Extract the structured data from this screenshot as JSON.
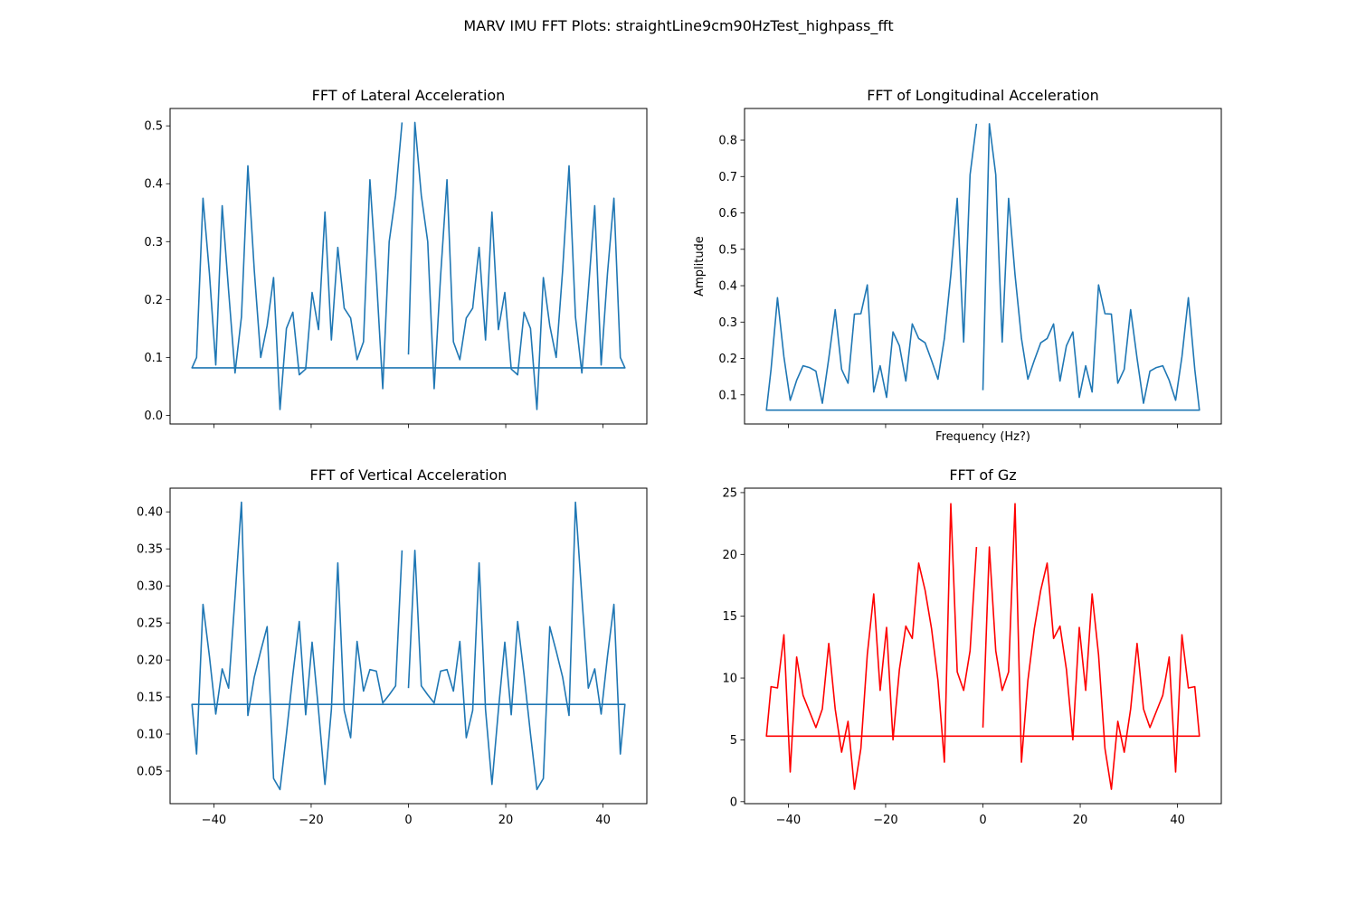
{
  "figure": {
    "title": "MARV IMU FFT Plots: straightLine9cm90HzTest_highpass_fft"
  },
  "chart_data": [
    {
      "type": "line",
      "title": "FFT of Lateral Acceleration",
      "xlabel": "",
      "ylabel": "",
      "color": "#1f77b4",
      "xlim": [
        -49,
        49
      ],
      "ylim": [
        -0.015,
        0.53
      ],
      "xticks": [
        -40,
        -20,
        0,
        20,
        40
      ],
      "xtick_labels": [],
      "yticks": [
        0.0,
        0.1,
        0.2,
        0.3,
        0.4,
        0.5
      ],
      "ytick_labels": [
        "0.0",
        "0.1",
        "0.2",
        "0.3",
        "0.4",
        "0.5"
      ],
      "grid": false,
      "series": [
        {
          "x": [
            0,
            1.32,
            2.64,
            3.96,
            5.28,
            6.6,
            7.92,
            9.24,
            10.56,
            11.88,
            13.2,
            14.52,
            15.84,
            17.16,
            18.48,
            19.8,
            21.12,
            22.44,
            23.76,
            25.08,
            26.4,
            27.72,
            29.04,
            30.36,
            31.68,
            33,
            34.32,
            35.64,
            36.96,
            38.28,
            39.6,
            40.92,
            42.24,
            43.56,
            44.5,
            -44.5,
            -43.56,
            -42.24,
            -40.92,
            -39.6,
            -38.28,
            -36.96,
            -35.64,
            -34.32,
            -33,
            -31.68,
            -30.36,
            -29.04,
            -27.72,
            -26.4,
            -25.08,
            -23.76,
            -22.44,
            -21.12,
            -19.8,
            -18.48,
            -17.16,
            -15.84,
            -14.52,
            -13.2,
            -11.88,
            -10.56,
            -9.24,
            -7.92,
            -6.6,
            -5.28,
            -3.96,
            -2.64,
            -1.32
          ],
          "y": [
            0.105,
            0.506,
            0.38,
            0.3,
            0.046,
            0.24,
            0.407,
            0.127,
            0.096,
            0.168,
            0.185,
            0.29,
            0.13,
            0.351,
            0.148,
            0.212,
            0.08,
            0.07,
            0.178,
            0.15,
            0.01,
            0.238,
            0.155,
            0.1,
            0.25,
            0.431,
            0.17,
            0.073,
            0.215,
            0.362,
            0.087,
            0.245,
            0.375,
            0.1,
            0.082,
            0.082,
            0.1,
            0.375,
            0.245,
            0.087,
            0.362,
            0.215,
            0.073,
            0.17,
            0.431,
            0.25,
            0.1,
            0.155,
            0.238,
            0.01,
            0.15,
            0.178,
            0.07,
            0.08,
            0.212,
            0.148,
            0.351,
            0.13,
            0.29,
            0.185,
            0.168,
            0.096,
            0.127,
            0.407,
            0.24,
            0.046,
            0.3,
            0.38,
            0.506
          ]
        }
      ]
    },
    {
      "type": "line",
      "title": "FFT of Longitudinal Acceleration",
      "xlabel": "Frequency (Hz?)",
      "ylabel": "Amplitude",
      "color": "#1f77b4",
      "xlim": [
        -49,
        49
      ],
      "ylim": [
        0.02,
        0.887
      ],
      "xticks": [
        -40,
        -20,
        0,
        20,
        40
      ],
      "xtick_labels": [],
      "yticks": [
        0.1,
        0.2,
        0.3,
        0.4,
        0.5,
        0.6,
        0.7,
        0.8
      ],
      "ytick_labels": [
        "0.1",
        "0.2",
        "0.3",
        "0.4",
        "0.5",
        "0.6",
        "0.7",
        "0.8"
      ],
      "grid": false,
      "series": [
        {
          "x": [
            0,
            1.32,
            2.64,
            3.96,
            5.28,
            6.6,
            7.92,
            9.24,
            10.56,
            11.88,
            13.2,
            14.52,
            15.84,
            17.16,
            18.48,
            19.8,
            21.12,
            22.44,
            23.76,
            25.08,
            26.4,
            27.72,
            29.04,
            30.36,
            31.68,
            33,
            34.32,
            35.64,
            36.96,
            38.28,
            39.6,
            40.92,
            42.24,
            43.56,
            44.5,
            -44.5,
            -43.56,
            -42.24,
            -40.92,
            -39.6,
            -38.28,
            -36.96,
            -35.64,
            -34.32,
            -33,
            -31.68,
            -30.36,
            -29.04,
            -27.72,
            -26.4,
            -25.08,
            -23.76,
            -22.44,
            -21.12,
            -19.8,
            -18.48,
            -17.16,
            -15.84,
            -14.52,
            -13.2,
            -11.88,
            -10.56,
            -9.24,
            -7.92,
            -6.6,
            -5.28,
            -3.96,
            -2.64,
            -1.32
          ],
          "y": [
            0.113,
            0.845,
            0.705,
            0.245,
            0.64,
            0.43,
            0.255,
            0.143,
            0.195,
            0.243,
            0.255,
            0.295,
            0.138,
            0.235,
            0.273,
            0.093,
            0.18,
            0.108,
            0.402,
            0.323,
            0.322,
            0.132,
            0.17,
            0.334,
            0.2,
            0.077,
            0.165,
            0.175,
            0.18,
            0.14,
            0.085,
            0.205,
            0.367,
            0.17,
            0.058,
            0.058,
            0.17,
            0.367,
            0.205,
            0.085,
            0.14,
            0.18,
            0.175,
            0.165,
            0.077,
            0.2,
            0.334,
            0.17,
            0.132,
            0.322,
            0.323,
            0.402,
            0.108,
            0.18,
            0.093,
            0.273,
            0.235,
            0.138,
            0.295,
            0.255,
            0.243,
            0.195,
            0.143,
            0.255,
            0.43,
            0.64,
            0.245,
            0.705,
            0.845
          ]
        }
      ]
    },
    {
      "type": "line",
      "title": "FFT of Vertical Acceleration",
      "xlabel": "",
      "ylabel": "",
      "color": "#1f77b4",
      "xlim": [
        -49,
        49
      ],
      "ylim": [
        0.006,
        0.432
      ],
      "xticks": [
        -40,
        -20,
        0,
        20,
        40
      ],
      "xtick_labels": [
        "−40",
        "−20",
        "0",
        "20",
        "40"
      ],
      "yticks": [
        0.05,
        0.1,
        0.15,
        0.2,
        0.25,
        0.3,
        0.35,
        0.4
      ],
      "ytick_labels": [
        "0.05",
        "0.10",
        "0.15",
        "0.20",
        "0.25",
        "0.30",
        "0.35",
        "0.40"
      ],
      "grid": false,
      "series": [
        {
          "x": [
            0,
            1.32,
            2.64,
            3.96,
            5.28,
            6.6,
            7.92,
            9.24,
            10.56,
            11.88,
            13.2,
            14.52,
            15.84,
            17.16,
            18.48,
            19.8,
            21.12,
            22.44,
            23.76,
            25.08,
            26.4,
            27.72,
            29.04,
            30.36,
            31.68,
            33,
            34.32,
            35.64,
            36.96,
            38.28,
            39.6,
            40.92,
            42.24,
            43.56,
            44.5,
            -44.5,
            -43.56,
            -42.24,
            -40.92,
            -39.6,
            -38.28,
            -36.96,
            -35.64,
            -34.32,
            -33,
            -31.68,
            -30.36,
            -29.04,
            -27.72,
            -26.4,
            -25.08,
            -23.76,
            -22.44,
            -21.12,
            -19.8,
            -18.48,
            -17.16,
            -15.84,
            -14.52,
            -13.2,
            -11.88,
            -10.56,
            -9.24,
            -7.92,
            -6.6,
            -5.28,
            -3.96,
            -2.64,
            -1.32
          ],
          "y": [
            0.162,
            0.348,
            0.165,
            0.153,
            0.142,
            0.185,
            0.187,
            0.158,
            0.225,
            0.095,
            0.132,
            0.331,
            0.133,
            0.032,
            0.132,
            0.224,
            0.126,
            0.252,
            0.18,
            0.1,
            0.025,
            0.04,
            0.245,
            0.212,
            0.177,
            0.125,
            0.413,
            0.285,
            0.162,
            0.188,
            0.127,
            0.205,
            0.275,
            0.073,
            0.14,
            0.14,
            0.073,
            0.275,
            0.205,
            0.127,
            0.188,
            0.162,
            0.285,
            0.413,
            0.125,
            0.177,
            0.212,
            0.245,
            0.04,
            0.025,
            0.1,
            0.18,
            0.252,
            0.126,
            0.224,
            0.132,
            0.032,
            0.133,
            0.331,
            0.132,
            0.095,
            0.225,
            0.158,
            0.187,
            0.185,
            0.142,
            0.153,
            0.165,
            0.348
          ]
        }
      ]
    },
    {
      "type": "line",
      "title": "FFT of Gz",
      "xlabel": "",
      "ylabel": "",
      "color": "#ff0000",
      "xlim": [
        -49,
        49
      ],
      "ylim": [
        -0.16,
        25.36
      ],
      "xticks": [
        -40,
        -20,
        0,
        20,
        40
      ],
      "xtick_labels": [
        "−40",
        "−20",
        "0",
        "20",
        "40"
      ],
      "yticks": [
        0,
        5,
        10,
        15,
        20,
        25
      ],
      "ytick_labels": [
        "0",
        "5",
        "10",
        "15",
        "20",
        "25"
      ],
      "grid": false,
      "series": [
        {
          "x": [
            0,
            1.32,
            2.64,
            3.96,
            5.28,
            6.6,
            7.92,
            9.24,
            10.56,
            11.88,
            13.2,
            14.52,
            15.84,
            17.16,
            18.48,
            19.8,
            21.12,
            22.44,
            23.76,
            25.08,
            26.4,
            27.72,
            29.04,
            30.36,
            31.68,
            33,
            34.32,
            35.64,
            36.96,
            38.28,
            39.6,
            40.92,
            42.24,
            43.56,
            44.5,
            -44.5,
            -43.56,
            -42.24,
            -40.92,
            -39.6,
            -38.28,
            -36.96,
            -35.64,
            -34.32,
            -33,
            -31.68,
            -30.36,
            -29.04,
            -27.72,
            -26.4,
            -25.08,
            -23.76,
            -22.44,
            -21.12,
            -19.8,
            -18.48,
            -17.16,
            -15.84,
            -14.52,
            -13.2,
            -11.88,
            -10.56,
            -9.24,
            -7.92,
            -6.6,
            -5.28,
            -3.96,
            -2.64,
            -1.32
          ],
          "y": [
            6,
            20.6,
            12.2,
            9,
            10.5,
            24.1,
            3.2,
            9.8,
            14,
            17.1,
            19.3,
            13.2,
            14.2,
            10.7,
            5,
            14.1,
            9,
            16.8,
            11.9,
            4.3,
            1,
            6.5,
            4,
            7.5,
            12.8,
            7.5,
            6,
            7.3,
            8.6,
            11.7,
            2.4,
            13.5,
            9.2,
            9.3,
            5.3,
            5.3,
            9.3,
            9.2,
            13.5,
            2.4,
            11.7,
            8.6,
            7.3,
            6,
            7.5,
            12.8,
            7.5,
            4,
            6.5,
            1,
            4.3,
            11.9,
            16.8,
            9,
            14.1,
            5,
            10.7,
            14.2,
            13.2,
            19.3,
            17.1,
            14,
            9.8,
            3.2,
            24.1,
            10.5,
            9,
            12.2,
            20.6
          ]
        }
      ]
    }
  ]
}
